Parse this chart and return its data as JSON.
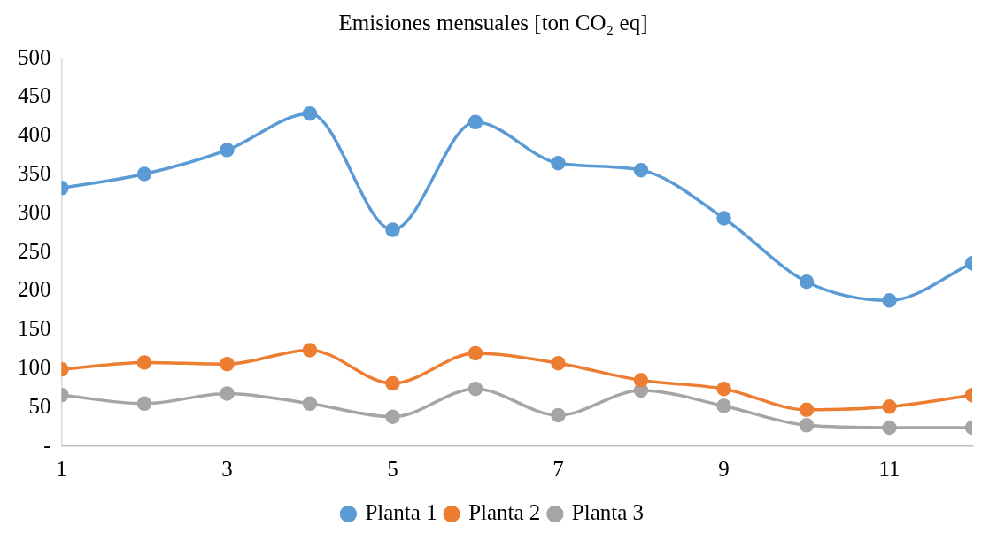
{
  "chart_data": {
    "type": "line",
    "title": "Emisiones mensuales [ton CO₂ eq]",
    "x": [
      1,
      2,
      3,
      4,
      5,
      6,
      7,
      8,
      9,
      10,
      11,
      12
    ],
    "series": [
      {
        "name": "Planta 1",
        "color": "#5b9bd5",
        "values": [
          333,
          351,
          382,
          429,
          279,
          418,
          365,
          356,
          294,
          212,
          188,
          236
        ]
      },
      {
        "name": "Planta 2",
        "color": "#ed7d31",
        "values": [
          99,
          108,
          106,
          124,
          81,
          120,
          107,
          85,
          74,
          47,
          51,
          66
        ]
      },
      {
        "name": "Planta 3",
        "color": "#a5a5a5",
        "values": [
          66,
          55,
          68,
          55,
          38,
          74,
          40,
          72,
          52,
          27,
          24,
          24
        ]
      }
    ],
    "xlim": [
      1,
      12
    ],
    "xticks": [
      1,
      3,
      5,
      7,
      9,
      11
    ],
    "ylim": [
      0,
      500
    ],
    "yticks": [
      {
        "value": 0,
        "label": "-"
      },
      50,
      100,
      150,
      200,
      250,
      300,
      350,
      400,
      450,
      500
    ],
    "grid": false,
    "legend": "bottom",
    "marker": "circle",
    "line_style": "solid"
  }
}
